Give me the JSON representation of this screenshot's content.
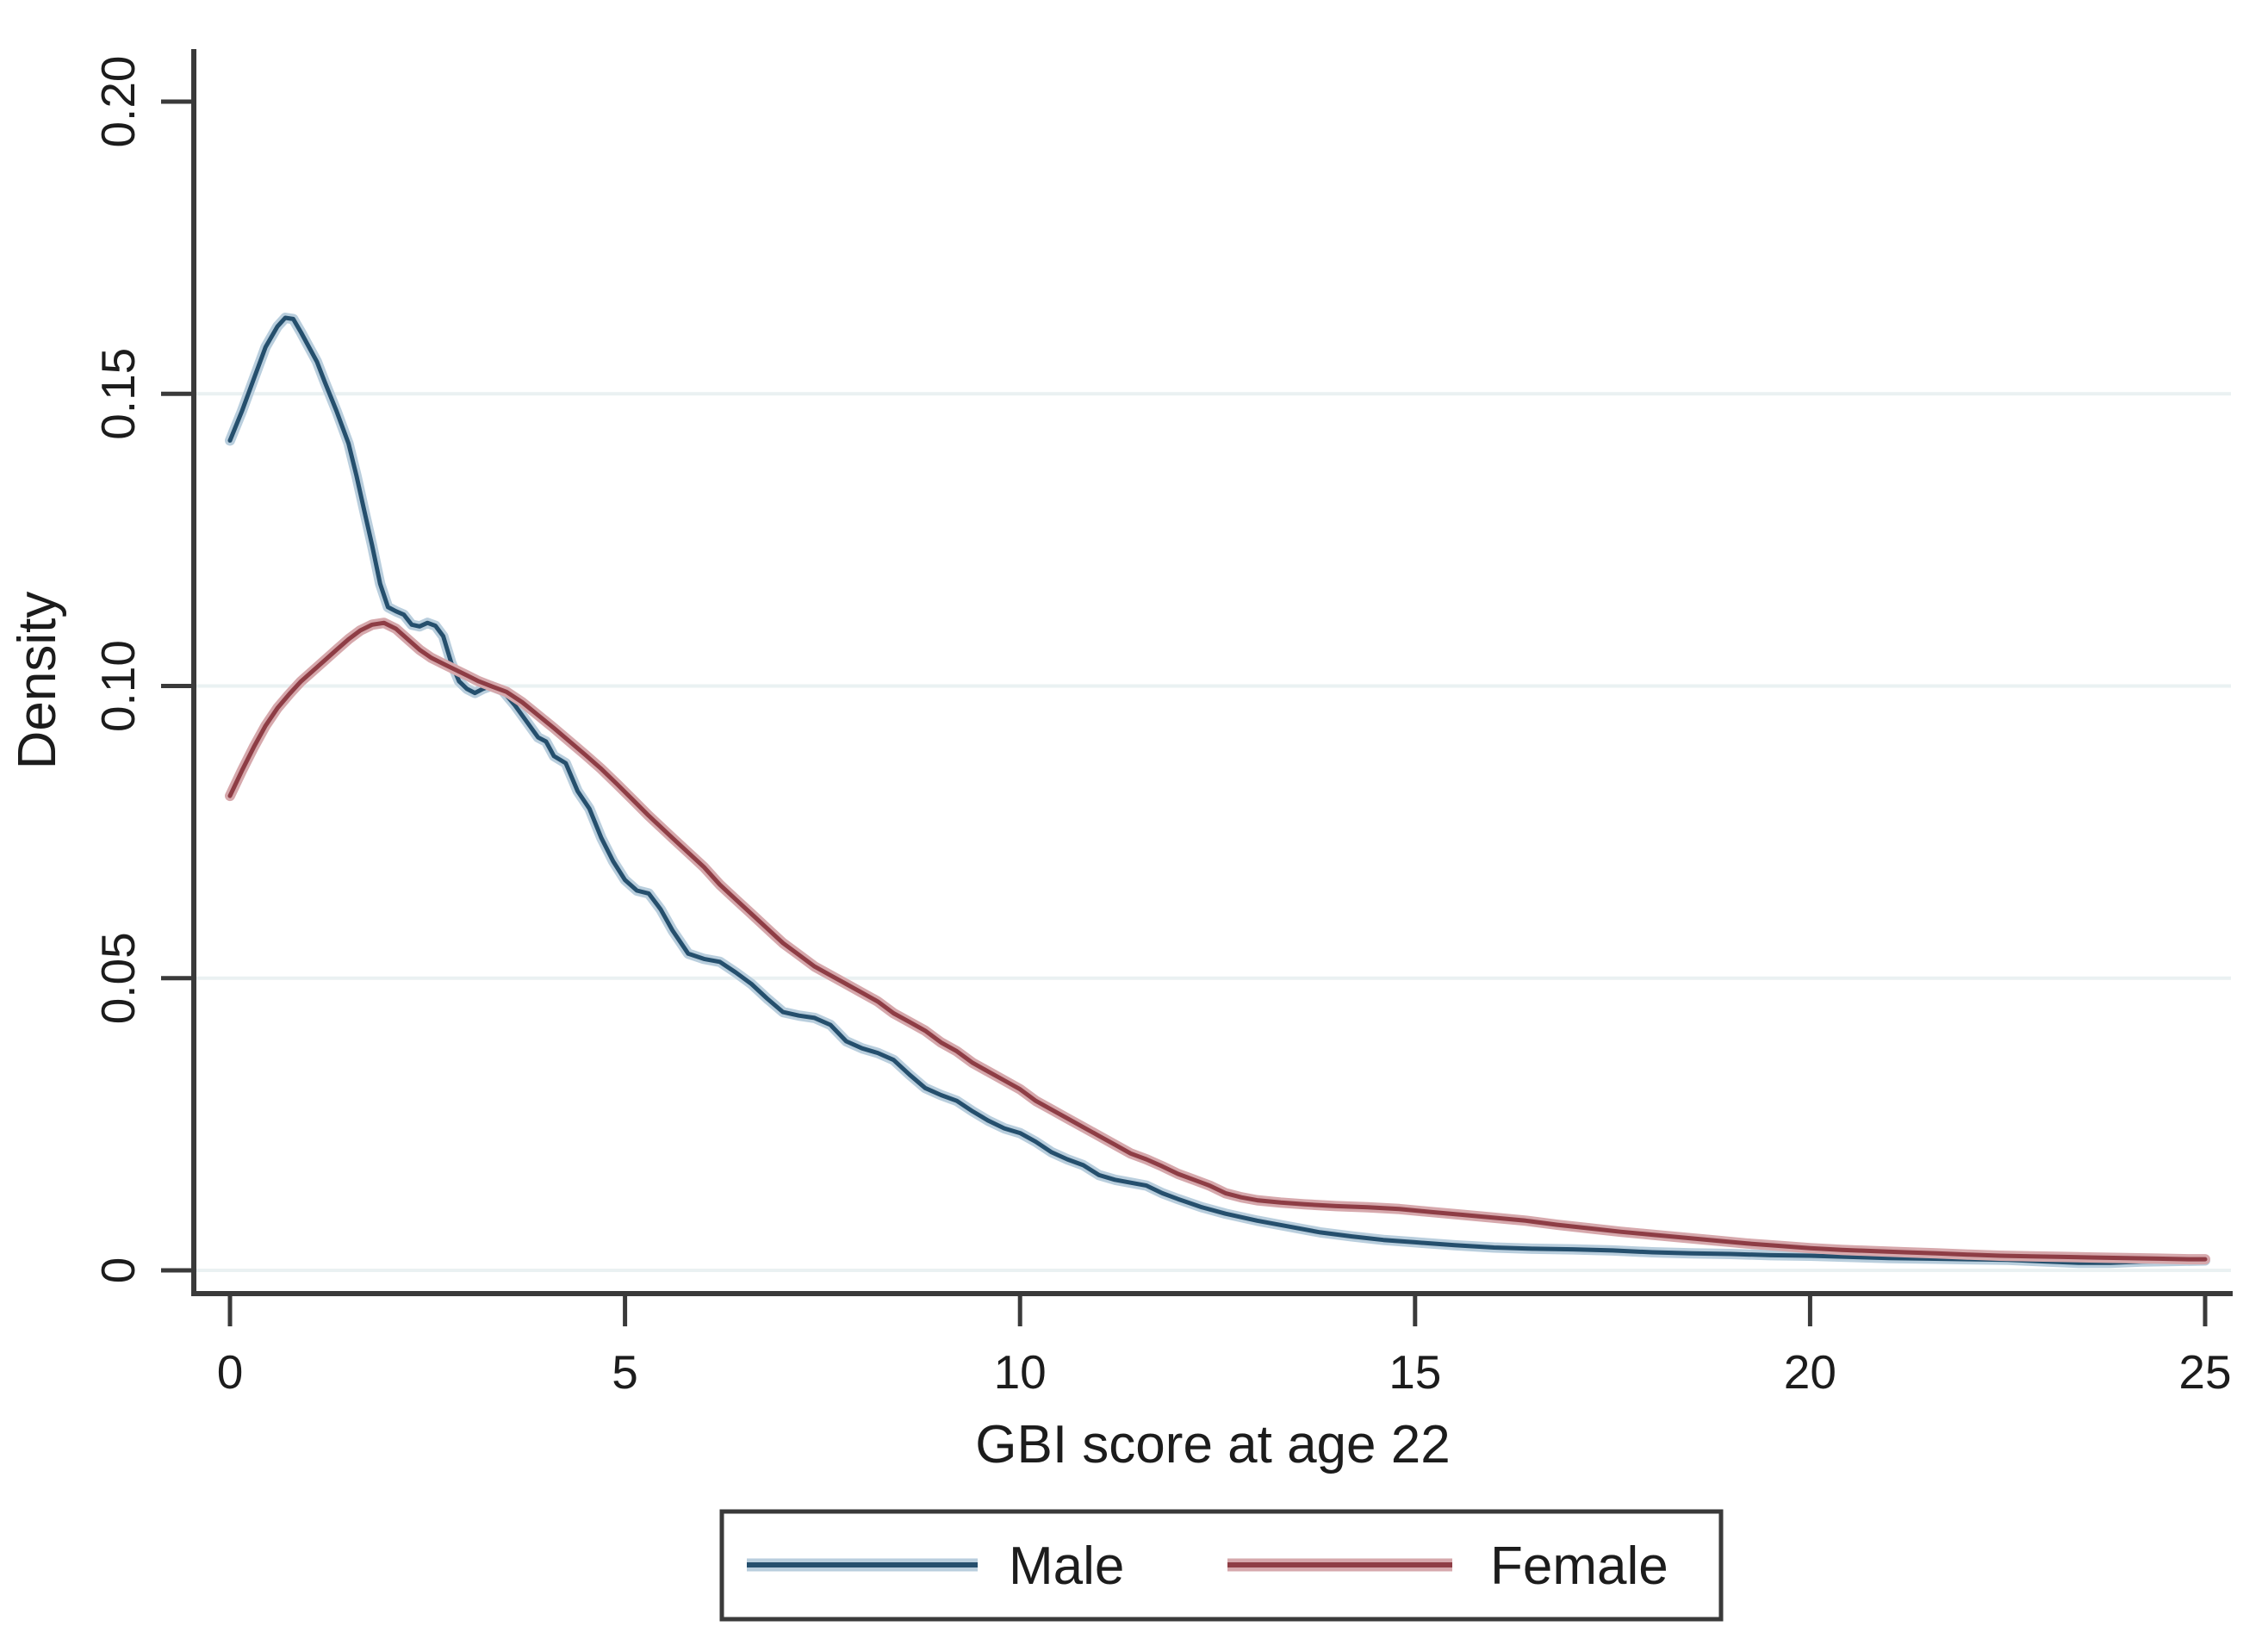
{
  "figure": {
    "background": "#ffffff"
  },
  "chart_data": {
    "type": "line",
    "title": "",
    "xlabel": "GBI score at age 22",
    "ylabel": "Density",
    "xlim": [
      0,
      25
    ],
    "ylim": [
      0,
      0.2
    ],
    "x_ticks": [
      0,
      5,
      10,
      15,
      20,
      25
    ],
    "x_tick_labels": [
      "0",
      "5",
      "10",
      "15",
      "20",
      "25"
    ],
    "y_ticks": [
      0,
      0.05,
      0.1,
      0.15,
      0.2
    ],
    "y_tick_labels": [
      "0",
      "0.05",
      "0.10",
      "0.15",
      "0.20"
    ],
    "grid_values": [
      0,
      0.05,
      0.1,
      0.15
    ],
    "grid_color": "#eaf1f2",
    "axis_color": "#3a3a3a",
    "legend_position": "bottom-center-boxed",
    "series": [
      {
        "name": "Male",
        "color": "#254f6d",
        "halo_color": "#b9cedd",
        "points": [
          [
            0,
            0.142
          ],
          [
            0.15,
            0.147
          ],
          [
            0.3,
            0.1525
          ],
          [
            0.45,
            0.158
          ],
          [
            0.6,
            0.1615
          ],
          [
            0.7,
            0.163
          ],
          [
            0.8,
            0.1628
          ],
          [
            0.9,
            0.1605
          ],
          [
            1.0,
            0.158
          ],
          [
            1.1,
            0.1555
          ],
          [
            1.2,
            0.152
          ],
          [
            1.35,
            0.147
          ],
          [
            1.5,
            0.1415
          ],
          [
            1.6,
            0.136
          ],
          [
            1.7,
            0.13
          ],
          [
            1.8,
            0.124
          ],
          [
            1.9,
            0.1175
          ],
          [
            2.0,
            0.1135
          ],
          [
            2.1,
            0.1128
          ],
          [
            2.2,
            0.1122
          ],
          [
            2.3,
            0.1105
          ],
          [
            2.4,
            0.1102
          ],
          [
            2.5,
            0.1108
          ],
          [
            2.6,
            0.1103
          ],
          [
            2.7,
            0.1085
          ],
          [
            2.8,
            0.104
          ],
          [
            2.9,
            0.1008
          ],
          [
            3.0,
            0.0995
          ],
          [
            3.1,
            0.0988
          ],
          [
            3.2,
            0.0995
          ],
          [
            3.3,
            0.1
          ],
          [
            3.45,
            0.0992
          ],
          [
            3.6,
            0.0968
          ],
          [
            3.75,
            0.094
          ],
          [
            3.9,
            0.0912
          ],
          [
            4.0,
            0.0905
          ],
          [
            4.1,
            0.088
          ],
          [
            4.25,
            0.0868
          ],
          [
            4.4,
            0.082
          ],
          [
            4.55,
            0.079
          ],
          [
            4.7,
            0.074
          ],
          [
            4.85,
            0.07
          ],
          [
            5.0,
            0.0668
          ],
          [
            5.15,
            0.065
          ],
          [
            5.3,
            0.0645
          ],
          [
            5.45,
            0.0618
          ],
          [
            5.6,
            0.0582
          ],
          [
            5.8,
            0.0542
          ],
          [
            6.0,
            0.0533
          ],
          [
            6.2,
            0.0528
          ],
          [
            6.4,
            0.051
          ],
          [
            6.6,
            0.049
          ],
          [
            6.8,
            0.0465
          ],
          [
            7.0,
            0.0442
          ],
          [
            7.2,
            0.0436
          ],
          [
            7.4,
            0.0432
          ],
          [
            7.6,
            0.042
          ],
          [
            7.8,
            0.0392
          ],
          [
            8.0,
            0.038
          ],
          [
            8.2,
            0.0372
          ],
          [
            8.4,
            0.036
          ],
          [
            8.6,
            0.0335
          ],
          [
            8.8,
            0.0312
          ],
          [
            9.0,
            0.03
          ],
          [
            9.2,
            0.029
          ],
          [
            9.4,
            0.0272
          ],
          [
            9.6,
            0.0256
          ],
          [
            9.8,
            0.0243
          ],
          [
            10.0,
            0.0235
          ],
          [
            10.2,
            0.022
          ],
          [
            10.4,
            0.0202
          ],
          [
            10.6,
            0.019
          ],
          [
            10.8,
            0.018
          ],
          [
            11.0,
            0.0163
          ],
          [
            11.2,
            0.0155
          ],
          [
            11.4,
            0.015
          ],
          [
            11.6,
            0.0145
          ],
          [
            11.8,
            0.0132
          ],
          [
            12.0,
            0.0122
          ],
          [
            12.3,
            0.0108
          ],
          [
            12.6,
            0.0097
          ],
          [
            13.0,
            0.0085
          ],
          [
            13.4,
            0.0075
          ],
          [
            13.8,
            0.0065
          ],
          [
            14.2,
            0.0058
          ],
          [
            14.6,
            0.0052
          ],
          [
            15.0,
            0.0048
          ],
          [
            15.5,
            0.0043
          ],
          [
            16.0,
            0.0039
          ],
          [
            16.5,
            0.0037
          ],
          [
            17.0,
            0.0036
          ],
          [
            17.5,
            0.0034
          ],
          [
            18.0,
            0.0031
          ],
          [
            18.5,
            0.0029
          ],
          [
            19.0,
            0.0028
          ],
          [
            19.5,
            0.0026
          ],
          [
            20.0,
            0.0025
          ],
          [
            20.5,
            0.0023
          ],
          [
            21.0,
            0.0021
          ],
          [
            21.5,
            0.002
          ],
          [
            22.0,
            0.0019
          ],
          [
            22.5,
            0.0018
          ],
          [
            23.0,
            0.0015
          ],
          [
            23.4,
            0.0013
          ],
          [
            23.8,
            0.0013
          ],
          [
            24.2,
            0.0015
          ],
          [
            24.6,
            0.0016
          ],
          [
            25.0,
            0.0017
          ]
        ]
      },
      {
        "name": "Female",
        "color": "#8e3d45",
        "halo_color": "#d6a8ac",
        "points": [
          [
            0,
            0.0812
          ],
          [
            0.15,
            0.0855
          ],
          [
            0.3,
            0.0895
          ],
          [
            0.45,
            0.0932
          ],
          [
            0.6,
            0.0962
          ],
          [
            0.75,
            0.0986
          ],
          [
            0.9,
            0.1008
          ],
          [
            1.05,
            0.1026
          ],
          [
            1.2,
            0.1044
          ],
          [
            1.35,
            0.1062
          ],
          [
            1.5,
            0.108
          ],
          [
            1.65,
            0.1095
          ],
          [
            1.8,
            0.1105
          ],
          [
            1.95,
            0.1108
          ],
          [
            2.1,
            0.1098
          ],
          [
            2.25,
            0.108
          ],
          [
            2.4,
            0.1062
          ],
          [
            2.55,
            0.1048
          ],
          [
            2.7,
            0.1038
          ],
          [
            2.85,
            0.1028
          ],
          [
            3.0,
            0.1018
          ],
          [
            3.15,
            0.1008
          ],
          [
            3.3,
            0.1
          ],
          [
            3.5,
            0.099
          ],
          [
            3.7,
            0.0972
          ],
          [
            3.9,
            0.095
          ],
          [
            4.1,
            0.0928
          ],
          [
            4.3,
            0.0905
          ],
          [
            4.5,
            0.0882
          ],
          [
            4.7,
            0.0858
          ],
          [
            4.9,
            0.0832
          ],
          [
            5.1,
            0.0805
          ],
          [
            5.3,
            0.0778
          ],
          [
            5.6,
            0.074
          ],
          [
            5.8,
            0.0715
          ],
          [
            6.0,
            0.069
          ],
          [
            6.2,
            0.066
          ],
          [
            6.4,
            0.0635
          ],
          [
            6.6,
            0.061
          ],
          [
            6.8,
            0.0585
          ],
          [
            7.0,
            0.056
          ],
          [
            7.2,
            0.054
          ],
          [
            7.4,
            0.052
          ],
          [
            7.6,
            0.0505
          ],
          [
            7.8,
            0.049
          ],
          [
            8.0,
            0.0475
          ],
          [
            8.2,
            0.046
          ],
          [
            8.4,
            0.044
          ],
          [
            8.6,
            0.0425
          ],
          [
            8.8,
            0.041
          ],
          [
            9.0,
            0.039
          ],
          [
            9.2,
            0.0375
          ],
          [
            9.4,
            0.0355
          ],
          [
            9.6,
            0.034
          ],
          [
            9.8,
            0.0325
          ],
          [
            10.0,
            0.031
          ],
          [
            10.2,
            0.029
          ],
          [
            10.4,
            0.0275
          ],
          [
            10.6,
            0.026
          ],
          [
            10.8,
            0.0245
          ],
          [
            11.0,
            0.023
          ],
          [
            11.2,
            0.0215
          ],
          [
            11.4,
            0.02
          ],
          [
            11.6,
            0.019
          ],
          [
            11.8,
            0.0178
          ],
          [
            12.0,
            0.0165
          ],
          [
            12.2,
            0.0155
          ],
          [
            12.4,
            0.0145
          ],
          [
            12.6,
            0.0132
          ],
          [
            12.8,
            0.0125
          ],
          [
            13.0,
            0.012
          ],
          [
            13.3,
            0.0116
          ],
          [
            13.6,
            0.0113
          ],
          [
            14.0,
            0.011
          ],
          [
            14.4,
            0.0108
          ],
          [
            14.8,
            0.0105
          ],
          [
            15.2,
            0.01
          ],
          [
            15.6,
            0.0095
          ],
          [
            16.0,
            0.009
          ],
          [
            16.4,
            0.0085
          ],
          [
            16.8,
            0.0078
          ],
          [
            17.2,
            0.0072
          ],
          [
            17.6,
            0.0066
          ],
          [
            18.0,
            0.0061
          ],
          [
            18.4,
            0.0056
          ],
          [
            18.8,
            0.0051
          ],
          [
            19.2,
            0.0046
          ],
          [
            19.6,
            0.0042
          ],
          [
            20.0,
            0.0038
          ],
          [
            20.4,
            0.0035
          ],
          [
            20.8,
            0.0033
          ],
          [
            21.2,
            0.0031
          ],
          [
            21.6,
            0.0029
          ],
          [
            22.0,
            0.0027
          ],
          [
            22.4,
            0.0025
          ],
          [
            22.8,
            0.0024
          ],
          [
            23.2,
            0.0023
          ],
          [
            23.6,
            0.0022
          ],
          [
            24.0,
            0.0021
          ],
          [
            24.4,
            0.002
          ],
          [
            24.8,
            0.0019
          ],
          [
            25.0,
            0.0019
          ]
        ]
      }
    ]
  },
  "legend": {
    "border_color": "#3a3a3a",
    "items": [
      {
        "label": "Male"
      },
      {
        "label": "Female"
      }
    ]
  }
}
